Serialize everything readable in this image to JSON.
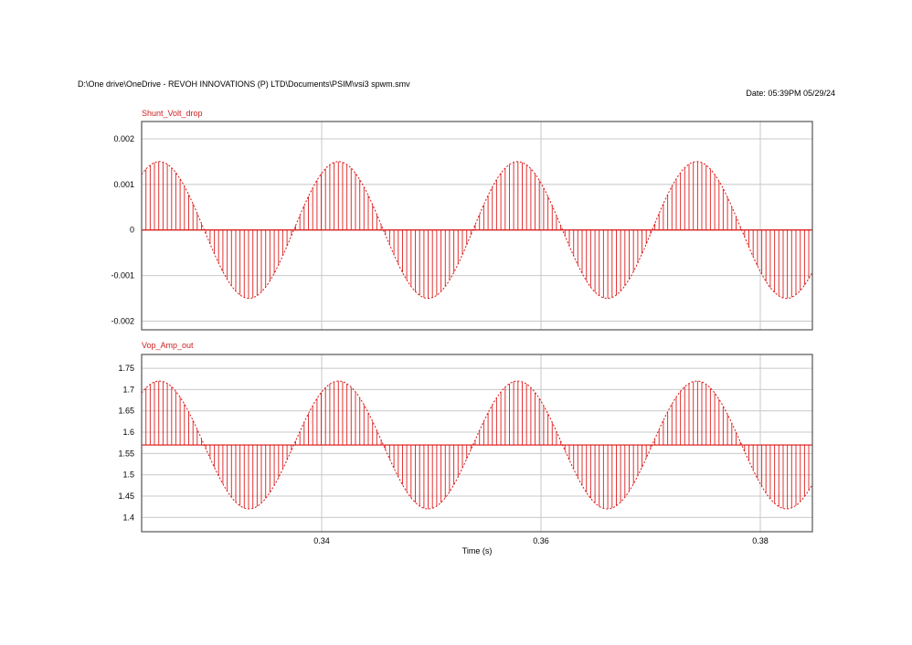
{
  "header": {
    "file_path": "D:\\One drive\\OneDrive - REVOH INNOVATIONS (P) LTD\\Documents\\PSIM\\vsi3 spwm.smv",
    "date": "Date: 05:39PM 05/29/24"
  },
  "colors": {
    "trace": "#dd1111",
    "title": "#cc2222",
    "grid": "#c8c8c8",
    "frame": "#555555"
  },
  "chart_data": [
    {
      "type": "line",
      "title": "Shunt_Volt_drop",
      "xlabel": "Time (s)",
      "ylabel": "",
      "xlim": [
        0.32358,
        0.38475
      ],
      "ylim": [
        -0.00219,
        0.00238
      ],
      "x_ticks": [
        0.34,
        0.36,
        0.38
      ],
      "x_tick_labels": [
        "0.34",
        "0.36",
        "0.38"
      ],
      "y_ticks": [
        0.002,
        0.001,
        0,
        -0.001,
        -0.002
      ],
      "y_tick_labels": [
        "0.002",
        "0.001",
        "0",
        "-0.001",
        "-0.002"
      ],
      "grid": true,
      "waveform": {
        "description": "SPWM-sampled sinusoid drawn as vertical stems from baseline",
        "baseline": 0,
        "amplitude": 0.0015,
        "frequency_hz": 61.2,
        "phase_peak_time": 0.3252,
        "stem_interval_s": 0.00039
      },
      "series": [
        {
          "name": "Shunt_Volt_drop",
          "peaks": [
            [
              0.3252,
              0.0015
            ],
            [
              0.3415,
              0.0015
            ],
            [
              0.3579,
              0.0015
            ],
            [
              0.3742,
              0.0015
            ]
          ],
          "troughs": [
            [
              0.3334,
              -0.0015
            ],
            [
              0.3497,
              -0.0015
            ],
            [
              0.366,
              -0.0015
            ],
            [
              0.3824,
              -0.0015
            ]
          ]
        }
      ]
    },
    {
      "type": "line",
      "title": "Vop_Amp_out",
      "xlabel": "Time (s)",
      "ylabel": "",
      "xlim": [
        0.32358,
        0.38475
      ],
      "ylim": [
        1.3665,
        1.7823
      ],
      "x_ticks": [
        0.34,
        0.36,
        0.38
      ],
      "x_tick_labels": [
        "0.34",
        "0.36",
        "0.38"
      ],
      "y_ticks": [
        1.75,
        1.7,
        1.65,
        1.6,
        1.55,
        1.5,
        1.45,
        1.4
      ],
      "y_tick_labels": [
        "1.75",
        "1.7",
        "1.65",
        "1.6",
        "1.55",
        "1.5",
        "1.45",
        "1.4"
      ],
      "grid": true,
      "waveform": {
        "description": "SPWM-sampled sinusoid drawn as vertical stems from baseline",
        "baseline": 1.57,
        "amplitude": 0.15,
        "frequency_hz": 61.2,
        "phase_peak_time": 0.3252,
        "stem_interval_s": 0.00039
      },
      "series": [
        {
          "name": "Vop_Amp_out",
          "peaks": [
            [
              0.3252,
              1.72
            ],
            [
              0.3415,
              1.72
            ],
            [
              0.3579,
              1.72
            ],
            [
              0.3742,
              1.72
            ]
          ],
          "troughs": [
            [
              0.3334,
              1.42
            ],
            [
              0.3497,
              1.42
            ],
            [
              0.366,
              1.42
            ],
            [
              0.3824,
              1.42
            ]
          ]
        }
      ]
    }
  ]
}
